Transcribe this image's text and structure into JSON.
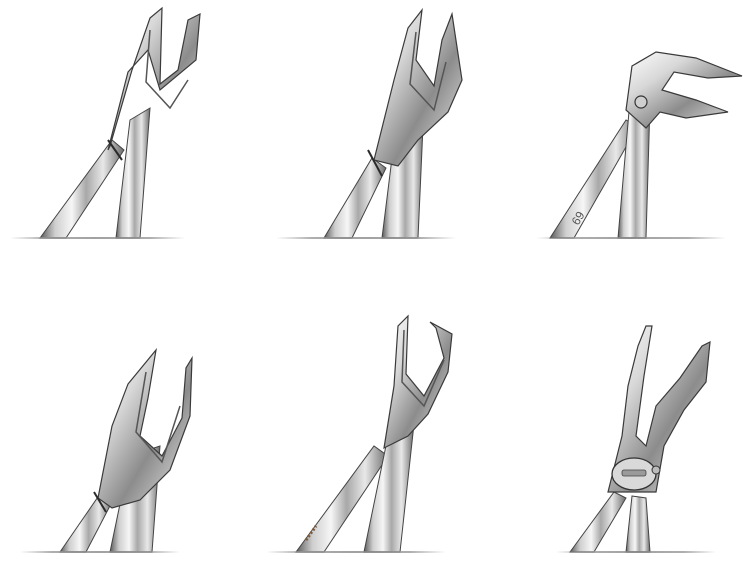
{
  "image": {
    "description_items": [
      {
        "id": "forceps-1",
        "icon": "dental-forceps-icon"
      },
      {
        "id": "forceps-2",
        "icon": "dental-forceps-icon"
      },
      {
        "id": "forceps-3",
        "icon": "dental-forceps-icon"
      },
      {
        "id": "forceps-4",
        "icon": "dental-forceps-icon"
      },
      {
        "id": "forceps-5",
        "icon": "dental-forceps-icon"
      },
      {
        "id": "forceps-6",
        "icon": "dental-forceps-icon"
      }
    ],
    "engraving": "69"
  },
  "colors": {
    "background": "#ffffff",
    "steel_light": "#eeeeee",
    "steel_mid": "#bdbdbd",
    "steel_dark": "#555555",
    "edge": "#333333"
  }
}
